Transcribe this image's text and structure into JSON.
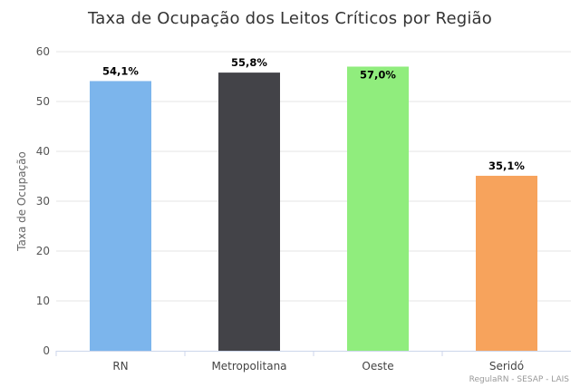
{
  "chart_data": {
    "type": "bar",
    "title": "Taxa de Ocupação dos Leitos Críticos por Região",
    "ylabel": "Taxa de Ocupação",
    "xlabel": "",
    "categories": [
      "RN",
      "Metropolitana",
      "Oeste",
      "Seridó"
    ],
    "values": [
      54.1,
      55.8,
      57.0,
      35.1
    ],
    "data_labels": [
      "54,1%",
      "55,8%",
      "57,0%",
      "35,1%"
    ],
    "colors": [
      "#7cb5ec",
      "#434348",
      "#90ed7d",
      "#f7a35c"
    ],
    "ylim": [
      0,
      60
    ],
    "yticks": [
      0,
      10,
      20,
      30,
      40,
      50,
      60
    ],
    "grid": true,
    "legend": "none",
    "credit": "RegulaRN - SESAP - LAIS"
  }
}
